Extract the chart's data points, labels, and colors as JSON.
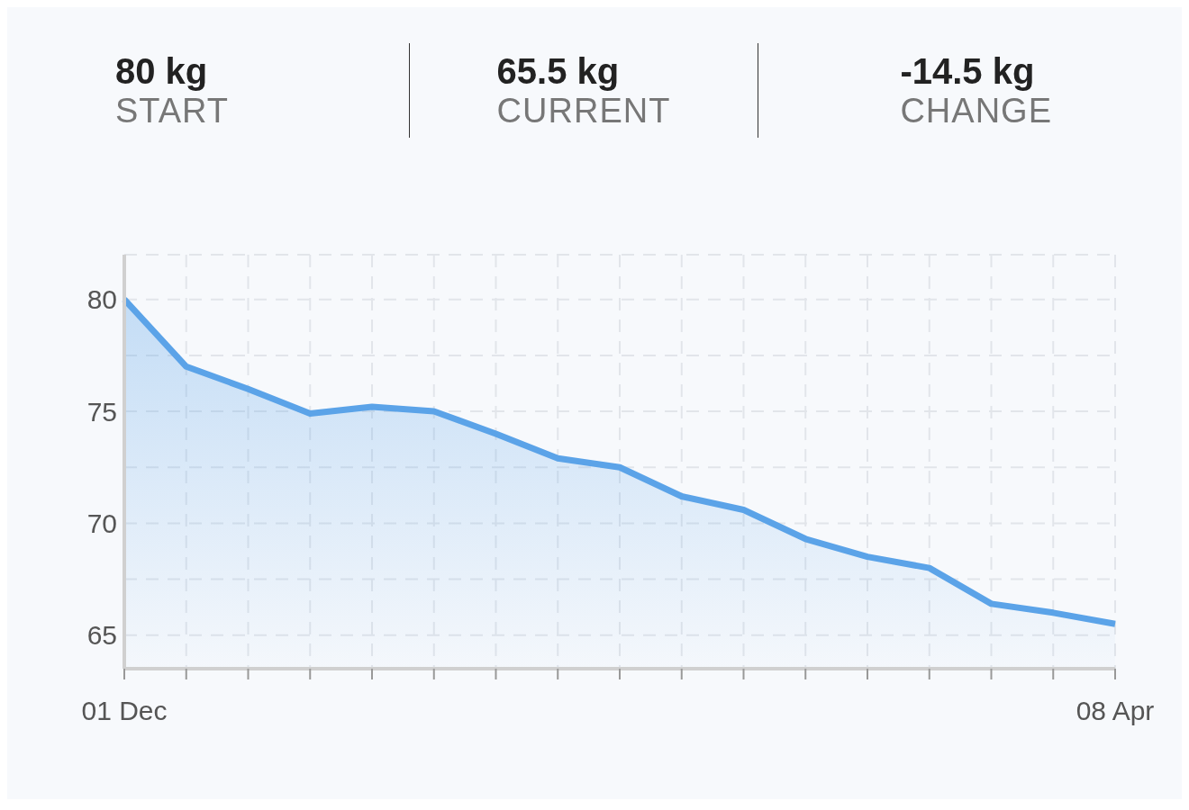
{
  "chart_data": {
    "type": "area",
    "annotations": [
      "80 kg",
      "START",
      "65.5 kg",
      "CURRENT",
      "-14.5 kg",
      "CHANGE"
    ],
    "categories": [
      "01 Dec",
      null,
      null,
      null,
      null,
      null,
      null,
      null,
      null,
      null,
      null,
      null,
      null,
      null,
      null,
      null,
      "08 Apr"
    ],
    "series": [
      {
        "color": "#5ba3e8",
        "values": [
          80,
          77.0,
          76.0,
          74.9,
          75.2,
          75.0,
          74.0,
          72.9,
          72.5,
          71.2,
          70.6,
          69.3,
          68.5,
          68.0,
          66.4,
          66.0,
          65.5
        ]
      }
    ],
    "ylim": [
      63.5,
      82
    ],
    "yticks": [
      65,
      {
        "value": 67.5,
        "label": null
      },
      70,
      {
        "value": 72.5,
        "label": null
      },
      75,
      {
        "value": 77.5,
        "label": null
      },
      80
    ],
    "grid": true,
    "legend": false
  }
}
